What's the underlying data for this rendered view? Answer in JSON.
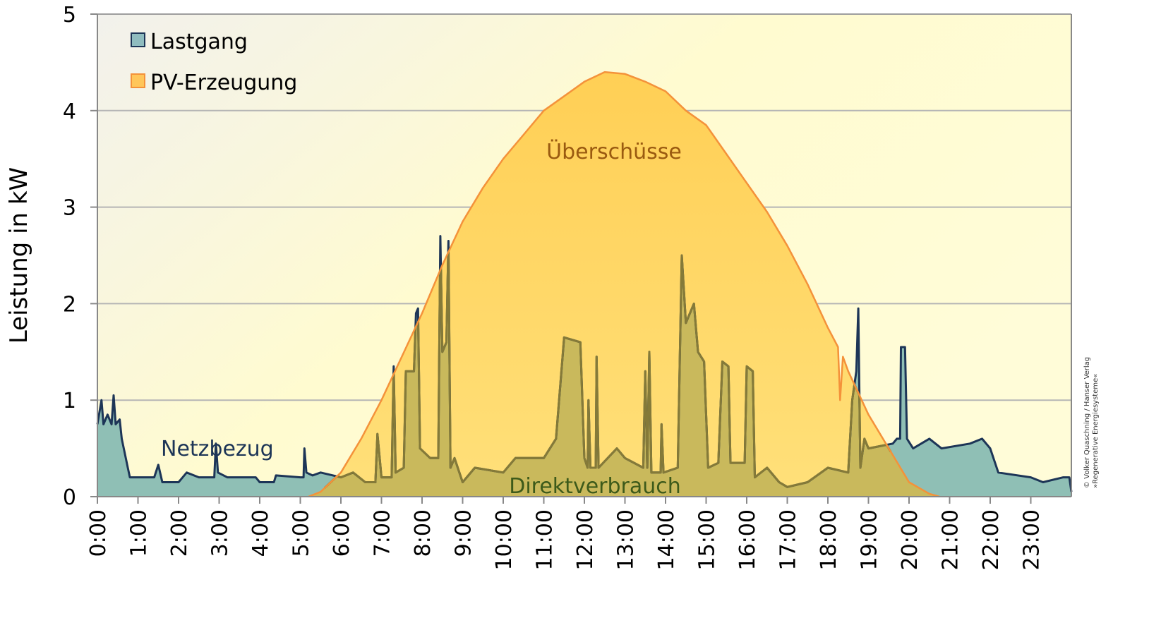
{
  "chart_data": {
    "type": "area",
    "ylabel": "Leistung in kW",
    "xlabel": "",
    "ylim": [
      0,
      5
    ],
    "xlim": [
      0,
      24
    ],
    "yticks": [
      0,
      1,
      2,
      3,
      4,
      5
    ],
    "xtick_labels": [
      "0:00",
      "1:00",
      "2:00",
      "3:00",
      "4:00",
      "5:00",
      "6:00",
      "7:00",
      "8:00",
      "9:00",
      "10:00",
      "11:00",
      "12:00",
      "13:00",
      "14:00",
      "15:00",
      "16:00",
      "17:00",
      "18:00",
      "19:00",
      "20:00",
      "21:00",
      "22:00",
      "23:00"
    ],
    "grid": true,
    "legend_position": "top-left",
    "legend": [
      {
        "name": "Lastgang",
        "color": "#8fbcbf"
      },
      {
        "name": "PV-Erzeugung",
        "color": "#ffc65a"
      }
    ],
    "annotations": {
      "surplus": "Überschüsse",
      "grid_supply": "Netzbezug",
      "direct_use": "Direktverbrauch"
    },
    "colors": {
      "load_line": "#1d3557",
      "load_fill": "#8fbfb5",
      "pv_line": "#f4923a",
      "pv_fill": "#ffd966",
      "direct_fill": "#c9b95c",
      "direct_line": "#857a38"
    },
    "series": [
      {
        "name": "Lastgang",
        "unit": "kW",
        "points": [
          [
            0,
            0.75
          ],
          [
            0.1,
            1.0
          ],
          [
            0.15,
            0.75
          ],
          [
            0.25,
            0.85
          ],
          [
            0.35,
            0.75
          ],
          [
            0.4,
            1.05
          ],
          [
            0.45,
            0.75
          ],
          [
            0.55,
            0.8
          ],
          [
            0.6,
            0.6
          ],
          [
            0.75,
            0.3
          ],
          [
            0.8,
            0.2
          ],
          [
            1.0,
            0.2
          ],
          [
            1.4,
            0.2
          ],
          [
            1.5,
            0.33
          ],
          [
            1.6,
            0.15
          ],
          [
            2.0,
            0.15
          ],
          [
            2.2,
            0.25
          ],
          [
            2.5,
            0.2
          ],
          [
            2.88,
            0.2
          ],
          [
            2.92,
            0.55
          ],
          [
            2.97,
            0.25
          ],
          [
            3.2,
            0.2
          ],
          [
            3.9,
            0.2
          ],
          [
            4.0,
            0.15
          ],
          [
            4.35,
            0.15
          ],
          [
            4.4,
            0.22
          ],
          [
            5.0,
            0.2
          ],
          [
            5.08,
            0.2
          ],
          [
            5.1,
            0.5
          ],
          [
            5.15,
            0.25
          ],
          [
            5.3,
            0.22
          ],
          [
            5.5,
            0.25
          ],
          [
            6.0,
            0.2
          ],
          [
            6.3,
            0.25
          ],
          [
            6.6,
            0.15
          ],
          [
            6.85,
            0.15
          ],
          [
            6.9,
            0.65
          ],
          [
            7.0,
            0.2
          ],
          [
            7.25,
            0.2
          ],
          [
            7.3,
            1.35
          ],
          [
            7.35,
            0.25
          ],
          [
            7.55,
            0.3
          ],
          [
            7.6,
            1.3
          ],
          [
            7.8,
            1.3
          ],
          [
            7.85,
            1.9
          ],
          [
            7.9,
            1.95
          ],
          [
            7.95,
            0.5
          ],
          [
            8.2,
            0.4
          ],
          [
            8.4,
            0.4
          ],
          [
            8.45,
            2.7
          ],
          [
            8.5,
            1.5
          ],
          [
            8.6,
            1.6
          ],
          [
            8.65,
            2.65
          ],
          [
            8.7,
            0.3
          ],
          [
            8.8,
            0.4
          ],
          [
            9.0,
            0.15
          ],
          [
            9.3,
            0.3
          ],
          [
            10.0,
            0.25
          ],
          [
            10.3,
            0.4
          ],
          [
            11.0,
            0.4
          ],
          [
            11.3,
            0.6
          ],
          [
            11.5,
            1.65
          ],
          [
            11.9,
            1.6
          ],
          [
            12.0,
            0.4
          ],
          [
            12.08,
            0.3
          ],
          [
            12.1,
            1.0
          ],
          [
            12.15,
            0.3
          ],
          [
            12.28,
            0.3
          ],
          [
            12.3,
            1.45
          ],
          [
            12.35,
            0.3
          ],
          [
            12.8,
            0.5
          ],
          [
            13.0,
            0.4
          ],
          [
            13.45,
            0.3
          ],
          [
            13.5,
            1.3
          ],
          [
            13.55,
            0.3
          ],
          [
            13.6,
            1.5
          ],
          [
            13.65,
            0.25
          ],
          [
            13.88,
            0.25
          ],
          [
            13.9,
            0.75
          ],
          [
            13.95,
            0.25
          ],
          [
            14.3,
            0.3
          ],
          [
            14.4,
            2.5
          ],
          [
            14.5,
            1.8
          ],
          [
            14.7,
            2.0
          ],
          [
            14.8,
            1.5
          ],
          [
            14.95,
            1.4
          ],
          [
            15.05,
            0.3
          ],
          [
            15.3,
            0.35
          ],
          [
            15.4,
            1.4
          ],
          [
            15.55,
            1.35
          ],
          [
            15.6,
            0.35
          ],
          [
            15.95,
            0.35
          ],
          [
            16.0,
            1.35
          ],
          [
            16.15,
            1.3
          ],
          [
            16.2,
            0.2
          ],
          [
            16.5,
            0.3
          ],
          [
            16.8,
            0.15
          ],
          [
            17.0,
            0.1
          ],
          [
            17.5,
            0.15
          ],
          [
            18.0,
            0.3
          ],
          [
            18.5,
            0.25
          ],
          [
            18.6,
            1.0
          ],
          [
            18.7,
            1.3
          ],
          [
            18.75,
            1.95
          ],
          [
            18.8,
            0.3
          ],
          [
            18.9,
            0.6
          ],
          [
            19.0,
            0.5
          ],
          [
            19.6,
            0.55
          ],
          [
            19.7,
            0.6
          ],
          [
            19.78,
            0.6
          ],
          [
            19.8,
            1.55
          ],
          [
            19.9,
            1.55
          ],
          [
            19.95,
            0.6
          ],
          [
            20.1,
            0.5
          ],
          [
            20.5,
            0.6
          ],
          [
            20.8,
            0.5
          ],
          [
            21.5,
            0.55
          ],
          [
            21.8,
            0.6
          ],
          [
            22.0,
            0.5
          ],
          [
            22.2,
            0.25
          ],
          [
            23.0,
            0.2
          ],
          [
            23.3,
            0.15
          ],
          [
            23.8,
            0.2
          ],
          [
            23.95,
            0.2
          ],
          [
            24.0,
            0.05
          ]
        ]
      },
      {
        "name": "PV-Erzeugung",
        "unit": "kW",
        "points": [
          [
            0,
            0
          ],
          [
            5.2,
            0
          ],
          [
            5.5,
            0.05
          ],
          [
            6.0,
            0.25
          ],
          [
            6.5,
            0.6
          ],
          [
            7.0,
            1.0
          ],
          [
            7.5,
            1.45
          ],
          [
            8.0,
            1.9
          ],
          [
            8.5,
            2.4
          ],
          [
            9.0,
            2.85
          ],
          [
            9.5,
            3.2
          ],
          [
            10.0,
            3.5
          ],
          [
            10.5,
            3.75
          ],
          [
            11.0,
            4.0
          ],
          [
            11.5,
            4.15
          ],
          [
            12.0,
            4.3
          ],
          [
            12.5,
            4.4
          ],
          [
            13.0,
            4.38
          ],
          [
            13.5,
            4.3
          ],
          [
            14.0,
            4.2
          ],
          [
            14.5,
            4.0
          ],
          [
            15.0,
            3.85
          ],
          [
            15.5,
            3.55
          ],
          [
            16.0,
            3.25
          ],
          [
            16.5,
            2.95
          ],
          [
            17.0,
            2.6
          ],
          [
            17.5,
            2.2
          ],
          [
            18.0,
            1.75
          ],
          [
            18.25,
            1.55
          ],
          [
            18.3,
            1.0
          ],
          [
            18.37,
            1.45
          ],
          [
            18.5,
            1.3
          ],
          [
            19.0,
            0.85
          ],
          [
            19.5,
            0.5
          ],
          [
            20.0,
            0.15
          ],
          [
            20.5,
            0.03
          ],
          [
            20.75,
            0
          ],
          [
            24,
            0
          ]
        ]
      }
    ]
  },
  "copyright": {
    "line1": "© Volker Quaschning / Hanser Verlag",
    "line2": "»Regenerative Energiesysteme«"
  }
}
